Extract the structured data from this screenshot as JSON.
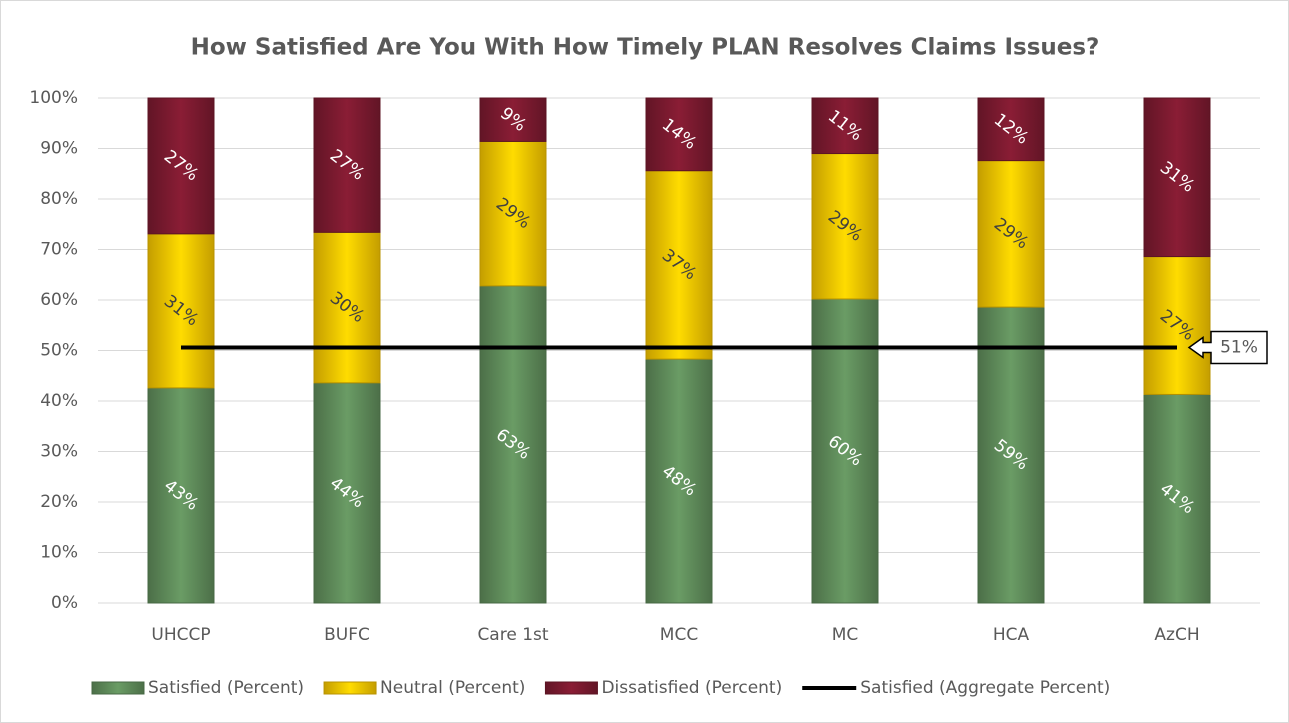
{
  "chart_data": {
    "type": "bar",
    "stacked": true,
    "title": "How Satisfied Are You With How Timely PLAN Resolves Claims Issues?",
    "categories": [
      "UHCCP",
      "BUFC",
      "Care 1st",
      "MCC",
      "MC",
      "HCA",
      "AzCH"
    ],
    "series": [
      {
        "name": "Satisfied (Percent)",
        "color": "#5f8b5a",
        "values": [
          42.6,
          43.6,
          62.8,
          48.3,
          60.2,
          58.6,
          41.3
        ],
        "value_labels": [
          "43%",
          "44%",
          "63%",
          "48%",
          "60%",
          "59%",
          "41%"
        ]
      },
      {
        "name": "Neutral (Percent)",
        "color": "#f5c400",
        "values": [
          30.5,
          29.8,
          28.6,
          37.3,
          28.8,
          29.0,
          27.3
        ],
        "value_labels": [
          "31%",
          "30%",
          "29%",
          "37%",
          "29%",
          "29%",
          "27%"
        ]
      },
      {
        "name": "Dissatisfied (Percent)",
        "color": "#7b1a2f",
        "values": [
          26.9,
          26.6,
          8.6,
          14.4,
          11.0,
          12.4,
          31.4
        ],
        "value_labels": [
          "27%",
          "27%",
          "9%",
          "14%",
          "11%",
          "12%",
          "31%"
        ]
      }
    ],
    "reference_line": {
      "name": "Satisfied (Aggregate Percent)",
      "color": "#000000",
      "value": 50.6,
      "value_label": "51%"
    },
    "ylim": [
      0,
      100
    ],
    "yticks": [
      {
        "value": 0,
        "label": "0%"
      },
      {
        "value": 10,
        "label": "10%"
      },
      {
        "value": 20,
        "label": "20%"
      },
      {
        "value": 30,
        "label": "30%"
      },
      {
        "value": 40,
        "label": "40%"
      },
      {
        "value": 50,
        "label": "50%"
      },
      {
        "value": 60,
        "label": "60%"
      },
      {
        "value": 70,
        "label": "70%"
      },
      {
        "value": 80,
        "label": "80%"
      },
      {
        "value": 90,
        "label": "90%"
      },
      {
        "value": 100,
        "label": "100%"
      }
    ],
    "grid": true,
    "legend": "bottom"
  }
}
